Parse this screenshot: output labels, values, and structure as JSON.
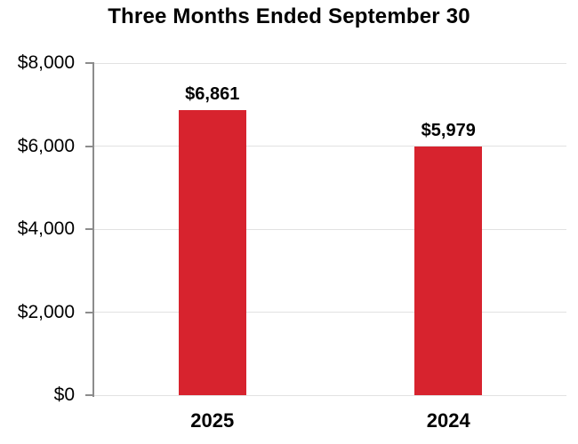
{
  "chart_data": {
    "type": "bar",
    "title": "Three Months Ended September 30",
    "categories": [
      "2025",
      "2024"
    ],
    "values": [
      6861,
      5979
    ],
    "value_labels": [
      "$6,861",
      "$5,979"
    ],
    "xlabel": "",
    "ylabel": "",
    "legend": "none",
    "grid": true,
    "y_axis": {
      "min": 0,
      "max": 8000,
      "tick_values": [
        8000,
        6000,
        4000,
        2000,
        0
      ],
      "tick_labels": [
        "$8,000",
        "$6,000",
        "$4,000",
        "$2,000",
        "$0"
      ]
    },
    "colors": {
      "bar": "#d7232e",
      "text": "#000000",
      "axis_line": "#8c8c8c",
      "gridline": "#e2e2e2",
      "background": "#ffffff"
    }
  }
}
